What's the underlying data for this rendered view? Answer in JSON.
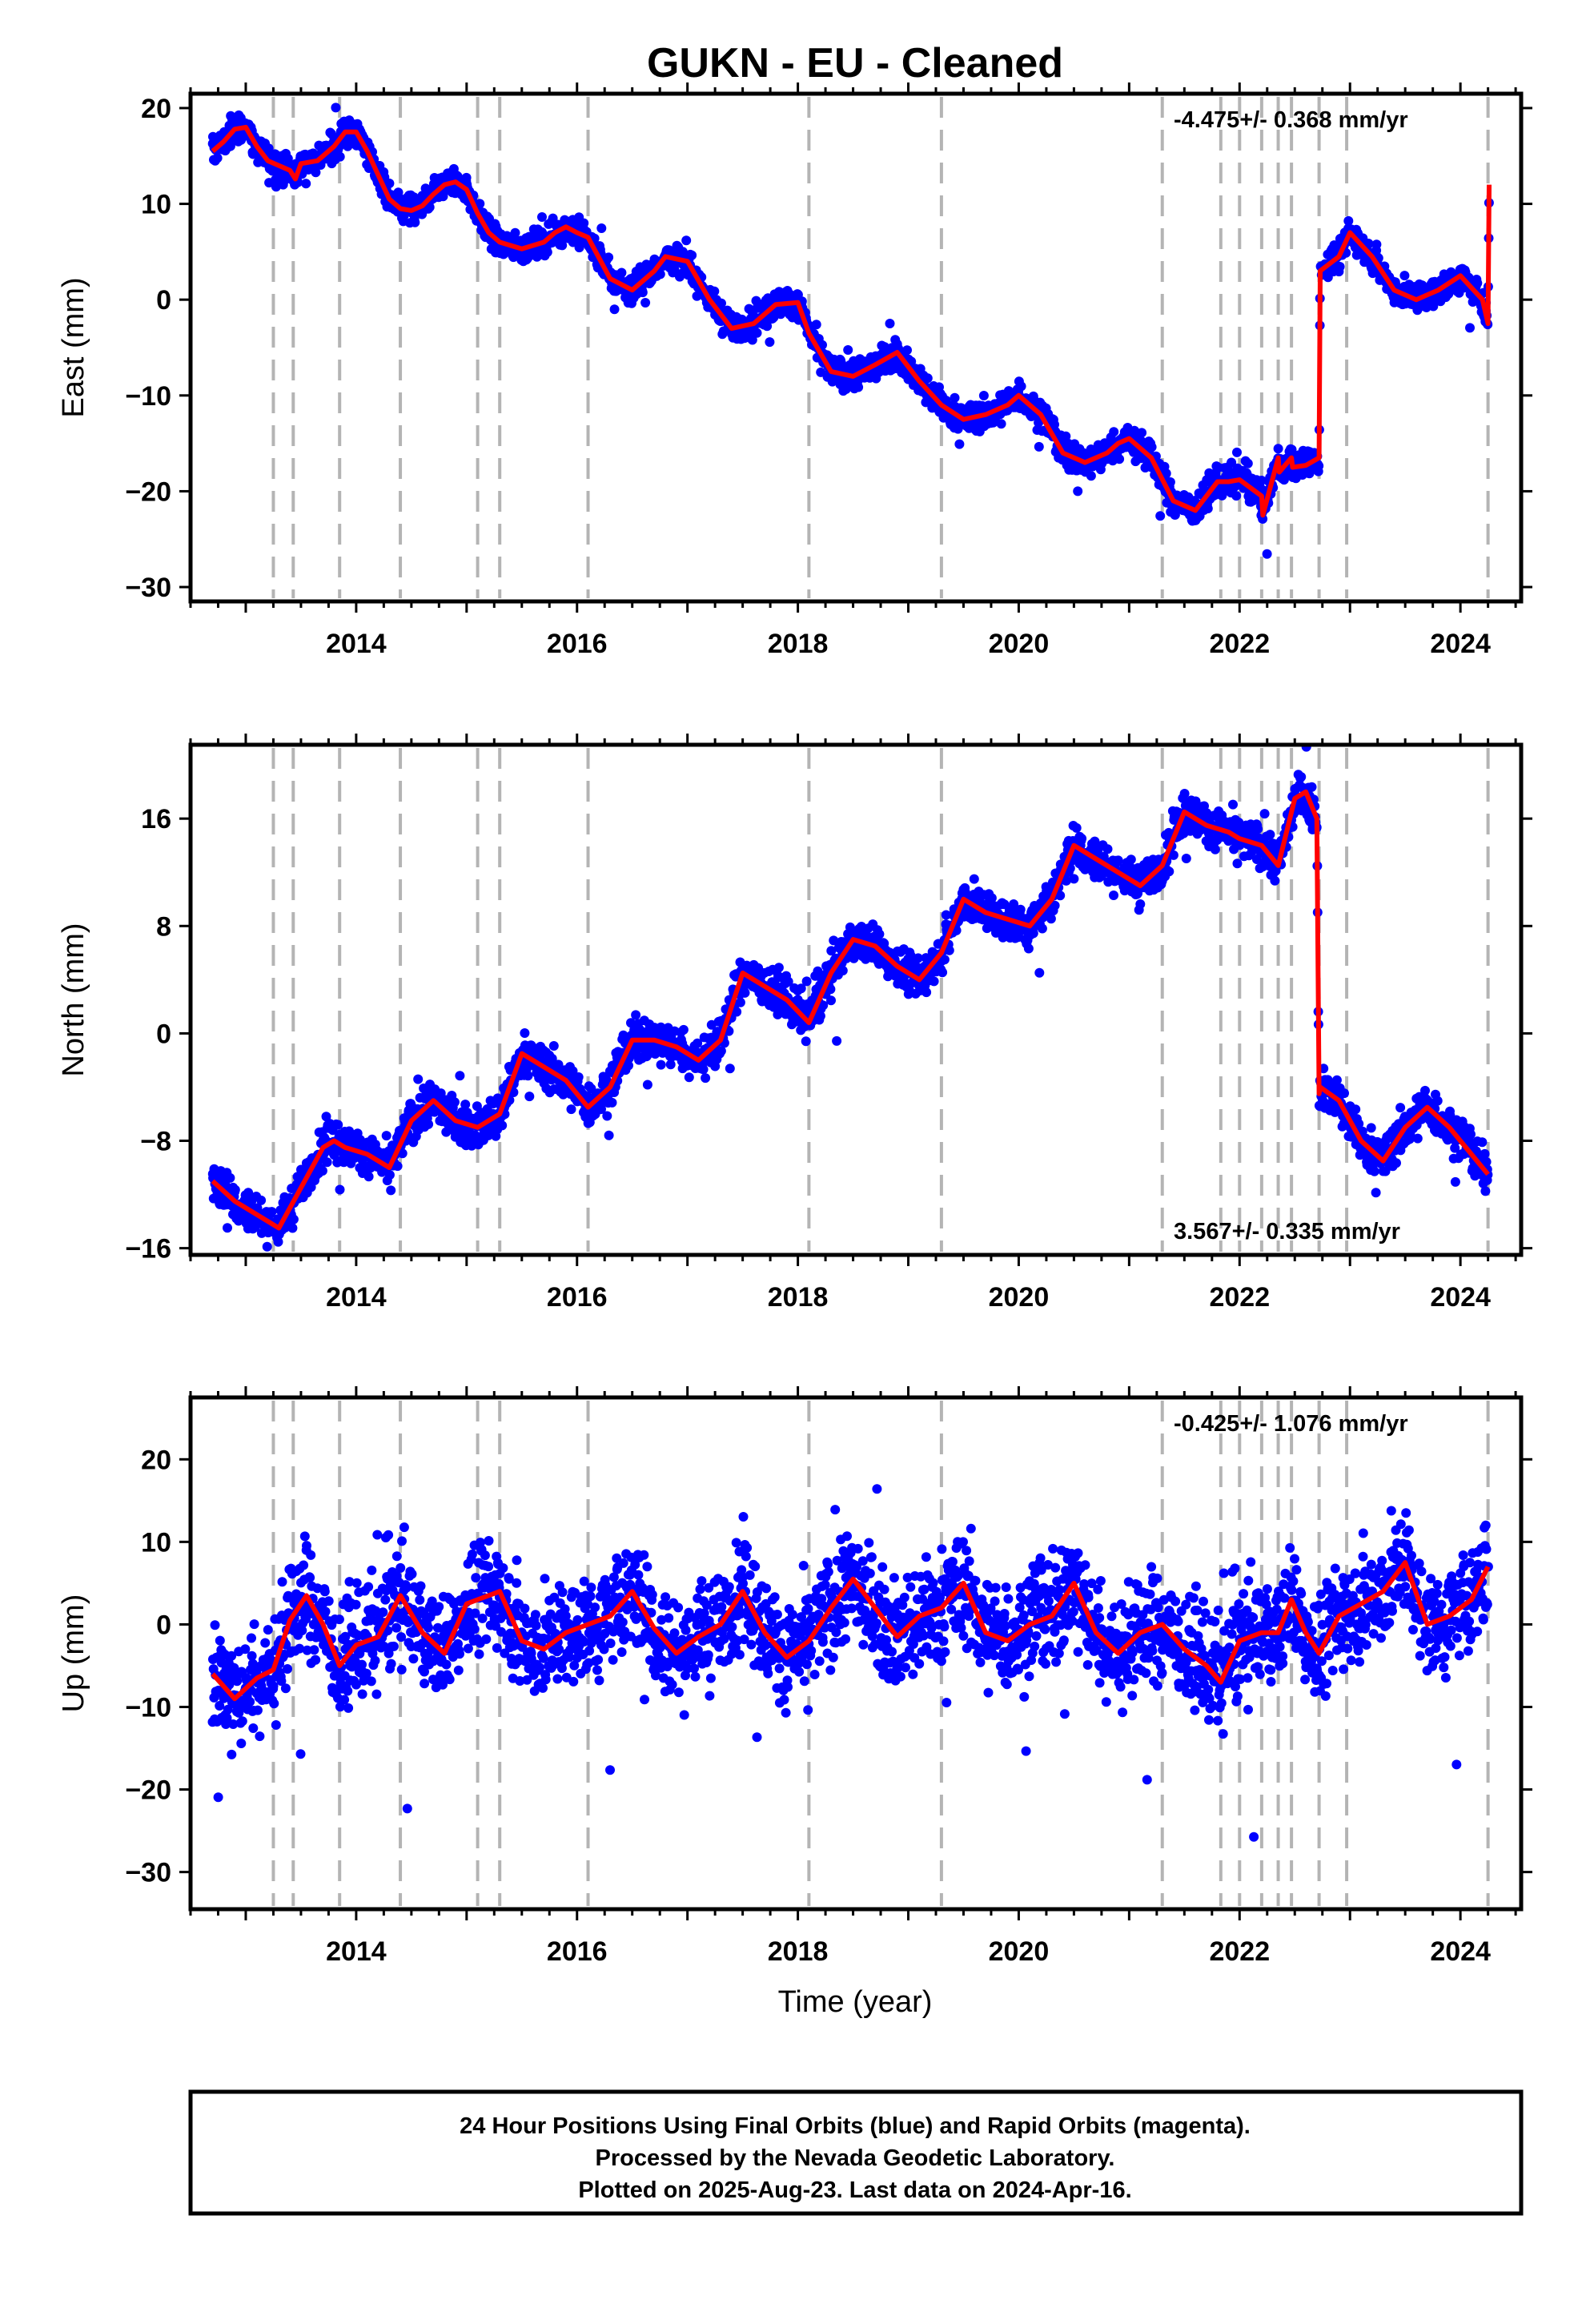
{
  "figure": {
    "title": "GUKN  - EU - Cleaned",
    "xlabel": "Time (year)",
    "footer": [
      "24 Hour Positions Using Final Orbits (blue) and Rapid Orbits (magenta).",
      "Processed by the Nevada Geodetic Laboratory.",
      "Plotted on 2025-Aug-23. Last data on 2024-Apr-16."
    ]
  },
  "colors": {
    "observations": "#0000ff",
    "model_fit": "#ff0000",
    "equipment_change_lines": "#b4b4b4",
    "frame": "#000000"
  },
  "chart_data": [
    {
      "type": "scatter",
      "title": "GUKN  - EU - Cleaned",
      "ylabel": "East (mm)",
      "rate_text": "-4.475+/- 0.368 mm/yr",
      "xlim": [
        2012.5,
        2024.55
      ],
      "ylim": [
        -31.5,
        21.5
      ],
      "xticks": [
        2014,
        2016,
        2018,
        2020,
        2022,
        2024
      ],
      "yticks": [
        20,
        10,
        0,
        -10,
        -20,
        -30
      ],
      "event_lines": [
        2013.25,
        2013.43,
        2013.85,
        2014.4,
        2015.1,
        2015.3,
        2016.1,
        2018.1,
        2019.3,
        2021.3,
        2021.83,
        2022.0,
        2022.2,
        2022.35,
        2022.47,
        2022.72,
        2022.97,
        2024.25
      ],
      "series": [
        {
          "type": "line",
          "x": [
            2012.7,
            2012.8,
            2012.9,
            2013.0,
            2013.1,
            2013.2,
            2013.3,
            2013.4,
            2013.45,
            2013.5,
            2013.65,
            2013.8,
            2013.9,
            2014.0,
            2014.1,
            2014.2,
            2014.3,
            2014.4,
            2014.5,
            2014.6,
            2014.7,
            2014.8,
            2014.9,
            2015.0,
            2015.1,
            2015.2,
            2015.3,
            2015.5,
            2015.7,
            2015.8,
            2015.9,
            2016.0,
            2016.1,
            2016.3,
            2016.5,
            2016.7,
            2016.8,
            2017.0,
            2017.2,
            2017.4,
            2017.6,
            2017.8,
            2018.0,
            2018.1,
            2018.3,
            2018.5,
            2018.7,
            2018.9,
            2019.1,
            2019.3,
            2019.5,
            2019.7,
            2019.9,
            2020.0,
            2020.2,
            2020.4,
            2020.6,
            2020.8,
            2020.9,
            2021.0,
            2021.2,
            2021.4,
            2021.6,
            2021.8,
            2021.9,
            2022.0,
            2022.2,
            2022.21,
            2022.35,
            2022.36,
            2022.47,
            2022.48,
            2022.6,
            2022.72,
            2022.73,
            2022.9,
            2023.0,
            2023.2,
            2023.4,
            2023.6,
            2023.8,
            2024.0,
            2024.2,
            2024.25,
            2024.26
          ],
          "y": [
            15.5,
            16.5,
            17.8,
            18.0,
            16.0,
            14.5,
            14.0,
            13.5,
            12.6,
            14.2,
            14.5,
            16.0,
            17.5,
            17.5,
            15.5,
            13.0,
            10.5,
            9.5,
            9.3,
            9.8,
            11.0,
            12.0,
            12.3,
            11.5,
            9.0,
            7.0,
            6.0,
            5.3,
            6.0,
            7.0,
            7.6,
            7.0,
            6.5,
            2.2,
            1.0,
            3.0,
            4.5,
            4.0,
            0.0,
            -3.0,
            -2.5,
            -0.5,
            -0.3,
            -3.5,
            -7.5,
            -8.0,
            -6.8,
            -5.5,
            -8.5,
            -11.0,
            -12.5,
            -12.0,
            -11.0,
            -10.0,
            -12.0,
            -16.0,
            -17.0,
            -16.0,
            -15.0,
            -14.5,
            -16.5,
            -21.0,
            -22.0,
            -19.0,
            -19.0,
            -18.8,
            -20.5,
            -22.5,
            -16.5,
            -18.0,
            -16.5,
            -17.5,
            -17.3,
            -16.5,
            3.0,
            4.5,
            7.0,
            4.5,
            1.0,
            0.0,
            1.0,
            2.5,
            0.0,
            -2.5,
            12.0
          ]
        }
      ]
    },
    {
      "type": "scatter",
      "ylabel": "North (mm)",
      "rate_text": "3.567+/- 0.335 mm/yr",
      "xlim": [
        2012.5,
        2024.55
      ],
      "ylim": [
        -16.5,
        21.5
      ],
      "xticks": [
        2014,
        2016,
        2018,
        2020,
        2022,
        2024
      ],
      "yticks": [
        16,
        8,
        0,
        -8,
        -16
      ],
      "event_lines": [
        2013.25,
        2013.43,
        2013.85,
        2014.4,
        2015.1,
        2015.3,
        2016.1,
        2018.1,
        2019.3,
        2021.3,
        2021.83,
        2022.0,
        2022.2,
        2022.35,
        2022.47,
        2022.72,
        2022.97,
        2024.25
      ],
      "series": [
        {
          "type": "line",
          "x": [
            2012.7,
            2012.9,
            2013.1,
            2013.3,
            2013.5,
            2013.7,
            2013.8,
            2013.9,
            2014.1,
            2014.3,
            2014.5,
            2014.7,
            2014.9,
            2015.1,
            2015.3,
            2015.5,
            2015.7,
            2015.9,
            2016.1,
            2016.3,
            2016.5,
            2016.7,
            2016.9,
            2017.1,
            2017.3,
            2017.5,
            2017.7,
            2017.9,
            2018.1,
            2018.3,
            2018.5,
            2018.7,
            2018.9,
            2019.1,
            2019.3,
            2019.5,
            2019.7,
            2019.9,
            2020.1,
            2020.3,
            2020.5,
            2020.7,
            2020.9,
            2021.1,
            2021.3,
            2021.5,
            2021.7,
            2021.9,
            2022.0,
            2022.2,
            2022.35,
            2022.5,
            2022.6,
            2022.7,
            2022.72,
            2022.73,
            2022.9,
            2023.1,
            2023.3,
            2023.5,
            2023.7,
            2023.9,
            2024.1,
            2024.25
          ],
          "y": [
            -11.0,
            -12.5,
            -13.5,
            -14.5,
            -11.5,
            -8.5,
            -8.0,
            -8.5,
            -9.0,
            -10.0,
            -6.5,
            -5.0,
            -6.5,
            -7.0,
            -6.0,
            -1.5,
            -2.5,
            -3.5,
            -5.5,
            -4.0,
            -0.5,
            -0.5,
            -1.0,
            -2.0,
            -0.5,
            4.5,
            3.5,
            2.5,
            0.8,
            4.5,
            7.0,
            6.5,
            5.0,
            4.0,
            6.0,
            10.0,
            9.0,
            8.5,
            8.0,
            10.0,
            14.0,
            13.0,
            12.0,
            11.0,
            12.5,
            16.5,
            15.5,
            15.0,
            14.5,
            14.0,
            12.5,
            17.5,
            18.0,
            16.0,
            -4.5,
            -4.0,
            -5.0,
            -8.0,
            -9.5,
            -7.0,
            -5.5,
            -7.0,
            -9.0,
            -10.5
          ]
        }
      ]
    },
    {
      "type": "scatter",
      "ylabel": "Up (mm)",
      "xlabel": "Time (year)",
      "rate_text": "-0.425+/- 1.076 mm/yr",
      "xlim": [
        2012.5,
        2024.55
      ],
      "ylim": [
        -34.5,
        27.5
      ],
      "xticks": [
        2014,
        2016,
        2018,
        2020,
        2022,
        2024
      ],
      "yticks": [
        20,
        10,
        0,
        -10,
        -20,
        -30
      ],
      "event_lines": [
        2013.25,
        2013.43,
        2013.85,
        2014.4,
        2015.1,
        2015.3,
        2016.1,
        2018.1,
        2019.3,
        2021.3,
        2021.83,
        2022.0,
        2022.2,
        2022.35,
        2022.47,
        2022.72,
        2022.97,
        2024.25
      ],
      "series": [
        {
          "type": "line",
          "x": [
            2012.7,
            2012.9,
            2013.1,
            2013.25,
            2013.4,
            2013.55,
            2013.7,
            2013.85,
            2014.0,
            2014.2,
            2014.4,
            2014.6,
            2014.8,
            2015.0,
            2015.1,
            2015.3,
            2015.5,
            2015.7,
            2015.9,
            2016.1,
            2016.3,
            2016.5,
            2016.7,
            2016.9,
            2017.1,
            2017.3,
            2017.5,
            2017.7,
            2017.9,
            2018.1,
            2018.3,
            2018.5,
            2018.7,
            2018.9,
            2019.1,
            2019.3,
            2019.5,
            2019.7,
            2019.9,
            2020.1,
            2020.3,
            2020.5,
            2020.7,
            2020.9,
            2021.1,
            2021.3,
            2021.5,
            2021.7,
            2021.83,
            2022.0,
            2022.2,
            2022.35,
            2022.47,
            2022.6,
            2022.72,
            2022.9,
            2023.1,
            2023.3,
            2023.5,
            2023.7,
            2023.9,
            2024.1,
            2024.25
          ],
          "y": [
            -6.0,
            -9.0,
            -6.5,
            -5.5,
            0.5,
            3.5,
            0.0,
            -5.0,
            -2.5,
            -1.5,
            3.5,
            -1.0,
            -3.5,
            2.5,
            3.0,
            4.0,
            -2.0,
            -3.0,
            -1.0,
            0.0,
            1.0,
            4.0,
            -0.5,
            -3.5,
            -1.5,
            0.0,
            4.0,
            -1.0,
            -4.0,
            -2.0,
            2.0,
            5.5,
            2.0,
            -1.5,
            1.0,
            2.0,
            5.0,
            -1.0,
            -2.0,
            0.0,
            1.0,
            5.0,
            -1.0,
            -3.5,
            -1.0,
            0.0,
            -3.0,
            -5.0,
            -7.0,
            -2.0,
            -1.0,
            -1.0,
            3.0,
            -1.0,
            -3.5,
            1.0,
            2.5,
            4.0,
            7.5,
            0.0,
            1.0,
            3.0,
            7.0
          ]
        }
      ]
    }
  ]
}
